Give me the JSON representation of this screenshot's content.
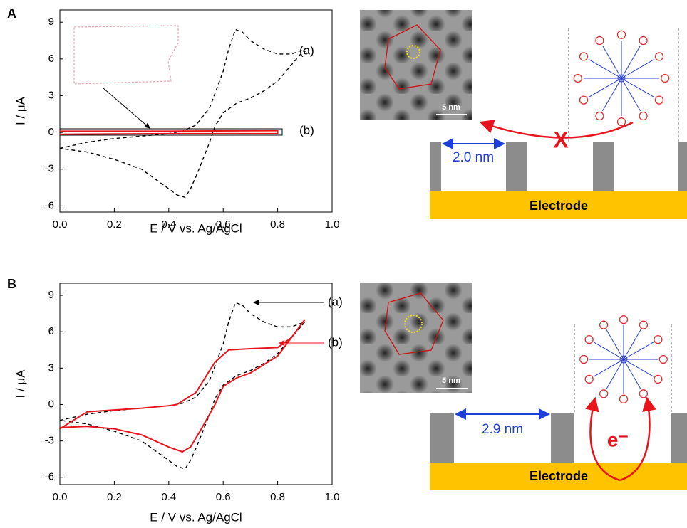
{
  "chart_data": [
    {
      "type": "line",
      "xlabel": "E / V vs. Ag/AgCl",
      "ylabel": "I / μA",
      "xlim": [
        0,
        1.0
      ],
      "ylim": [
        -6.5,
        10
      ],
      "xticks": [
        {
          "value": 0,
          "label": "0.0"
        },
        {
          "value": 0.2,
          "label": "0.2"
        },
        {
          "value": 0.4,
          "label": "0.4"
        },
        {
          "value": 0.6,
          "label": "0.6"
        },
        {
          "value": 0.8,
          "label": "0.8"
        },
        {
          "value": 1.0,
          "label": "1.0"
        }
      ],
      "yticks": [
        -6,
        -3,
        0,
        3,
        6,
        9
      ],
      "series": [
        {
          "name": "(a)",
          "color": "#000000",
          "dashed": true,
          "x": [
            0,
            0.1,
            0.2,
            0.3,
            0.4,
            0.45,
            0.5,
            0.55,
            0.6,
            0.62,
            0.645,
            0.67,
            0.7,
            0.75,
            0.8,
            0.85,
            0.9,
            0.85,
            0.8,
            0.75,
            0.7,
            0.65,
            0.6,
            0.57,
            0.55,
            0.52,
            0.5,
            0.48,
            0.46,
            0.43,
            0.4,
            0.35,
            0.3,
            0.2,
            0.1,
            0
          ],
          "values": [
            -1.3,
            -0.8,
            -0.5,
            -0.3,
            -0.1,
            0.1,
            0.6,
            2.0,
            5.0,
            6.8,
            8.4,
            8.2,
            7.5,
            6.8,
            6.4,
            6.4,
            6.8,
            5.5,
            4.2,
            3.4,
            2.8,
            2.4,
            1.6,
            0.5,
            -0.8,
            -2.5,
            -3.6,
            -4.6,
            -5.3,
            -5.1,
            -4.6,
            -3.8,
            -3.0,
            -2.2,
            -1.6,
            -1.3
          ]
        },
        {
          "name": "(b)",
          "color": "#e8141b",
          "dashed": false,
          "x": [
            0,
            0.4,
            0.8,
            0.8,
            0.4,
            0
          ],
          "values": [
            0.1,
            0.1,
            0.15,
            -0.1,
            -0.1,
            -0.15
          ]
        }
      ]
    },
    {
      "type": "line",
      "xlabel": "E / V vs. Ag/AgCl",
      "ylabel": "I / μA",
      "xlim": [
        0,
        1.0
      ],
      "ylim": [
        -6.6,
        10
      ],
      "xticks": [
        {
          "value": 0,
          "label": "0.0"
        },
        {
          "value": 0.2,
          "label": "0.2"
        },
        {
          "value": 0.4,
          "label": "0.4"
        },
        {
          "value": 0.6,
          "label": "0.6"
        },
        {
          "value": 0.8,
          "label": "0.8"
        },
        {
          "value": 1.0,
          "label": "1.0"
        }
      ],
      "yticks": [
        -6,
        -3,
        0,
        3,
        6,
        9
      ],
      "series": [
        {
          "name": "(a)",
          "color": "#000000",
          "dashed": true,
          "x": [
            0,
            0.1,
            0.2,
            0.3,
            0.4,
            0.45,
            0.5,
            0.55,
            0.6,
            0.62,
            0.645,
            0.67,
            0.7,
            0.75,
            0.8,
            0.85,
            0.9,
            0.85,
            0.8,
            0.75,
            0.7,
            0.65,
            0.6,
            0.57,
            0.55,
            0.52,
            0.5,
            0.48,
            0.46,
            0.43,
            0.4,
            0.35,
            0.3,
            0.2,
            0.1,
            0
          ],
          "values": [
            -1.3,
            -0.8,
            -0.5,
            -0.3,
            -0.1,
            0.1,
            0.6,
            2.0,
            5.0,
            6.8,
            8.4,
            8.2,
            7.5,
            6.8,
            6.4,
            6.4,
            6.8,
            5.5,
            4.2,
            3.4,
            2.8,
            2.4,
            1.6,
            0.5,
            -0.8,
            -2.5,
            -3.6,
            -4.6,
            -5.3,
            -5.1,
            -4.6,
            -3.8,
            -3.0,
            -2.2,
            -1.6,
            -1.3
          ]
        },
        {
          "name": "(b)",
          "color": "#e8141b",
          "dashed": false,
          "x": [
            0,
            0.1,
            0.2,
            0.3,
            0.4,
            0.43,
            0.5,
            0.55,
            0.57,
            0.62,
            0.7,
            0.8,
            0.85,
            0.9,
            0.85,
            0.8,
            0.7,
            0.65,
            0.6,
            0.57,
            0.52,
            0.48,
            0.45,
            0.4,
            0.3,
            0.2,
            0.1,
            0
          ],
          "values": [
            -2.0,
            -0.6,
            -0.45,
            -0.3,
            -0.1,
            0,
            1.0,
            2.8,
            3.5,
            4.5,
            4.6,
            4.7,
            5.5,
            7.0,
            5.5,
            4.0,
            2.6,
            2.2,
            1.5,
            0,
            -2.0,
            -3.5,
            -3.9,
            -3.5,
            -2.5,
            -2.0,
            -1.8,
            -1.9
          ]
        }
      ]
    }
  ],
  "panels": [
    {
      "label": "A",
      "scale_bar": "5 nm",
      "pore_width": "2.0 nm",
      "blocked": "X",
      "electrode": "Electrode"
    },
    {
      "label": "B",
      "scale_bar": "5 nm",
      "pore_width": "2.9 nm",
      "transfer": "e⁻",
      "electrode": "Electrode"
    }
  ]
}
